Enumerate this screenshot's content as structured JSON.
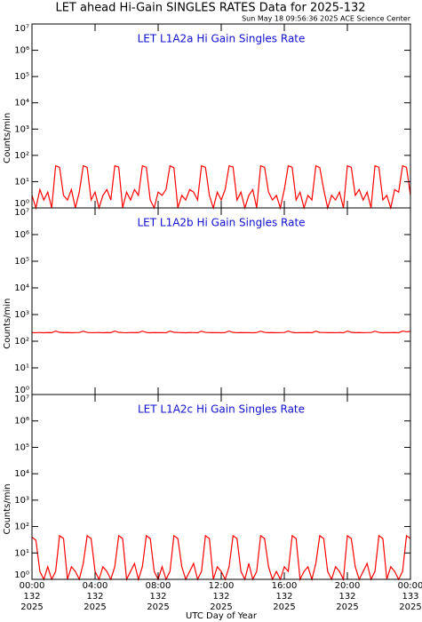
{
  "header": {
    "title": "LET ahead Hi-Gain SINGLES RATES Data for 2025-132",
    "timestamp": "Sun May 18 09:56:36 2025 ACE Science Center"
  },
  "chart_data": [
    {
      "type": "line",
      "subtitle": "LET L1A2a Hi Gain Singles Rate",
      "ylabel": "Counts/min",
      "yscale": "log",
      "color": "#ff0000",
      "xlim": [
        0,
        24
      ],
      "xticks": [
        0,
        4,
        8,
        12,
        16,
        20,
        24
      ],
      "ylim": [
        1,
        10000000
      ],
      "yticks": [
        {
          "value": 1,
          "label": "10⁰"
        },
        {
          "value": 10,
          "label": "10¹"
        },
        {
          "value": 100,
          "label": "10²"
        },
        {
          "value": 1000,
          "label": "10³"
        },
        {
          "value": 10000,
          "label": "10⁴"
        },
        {
          "value": 100000,
          "label": "10⁵"
        },
        {
          "value": 1000000,
          "label": "10⁶"
        },
        {
          "value": 10000000,
          "label": "10⁷"
        }
      ],
      "x": [
        0,
        0.25,
        0.5,
        0.75,
        1,
        1.25,
        1.5,
        1.75,
        2,
        2.25,
        2.5,
        2.75,
        3,
        3.25,
        3.5,
        3.75,
        4,
        4.25,
        4.5,
        4.75,
        5,
        5.25,
        5.5,
        5.75,
        6,
        6.25,
        6.5,
        6.75,
        7,
        7.25,
        7.5,
        7.75,
        8,
        8.25,
        8.5,
        8.75,
        9,
        9.25,
        9.5,
        9.75,
        10,
        10.25,
        10.5,
        10.75,
        11,
        11.25,
        11.5,
        11.75,
        12,
        12.25,
        12.5,
        12.75,
        13,
        13.25,
        13.5,
        13.75,
        14,
        14.25,
        14.5,
        14.75,
        15,
        15.25,
        15.5,
        15.75,
        16,
        16.25,
        16.5,
        16.75,
        17,
        17.25,
        17.5,
        17.75,
        18,
        18.25,
        18.5,
        18.75,
        19,
        19.25,
        19.5,
        19.75,
        20,
        20.25,
        20.5,
        20.75,
        21,
        21.25,
        21.5,
        21.75,
        22,
        22.25,
        22.5,
        22.75,
        23,
        23.25,
        23.5,
        23.75,
        24
      ],
      "values": [
        3,
        1,
        5,
        2,
        4,
        1,
        40,
        35,
        3,
        2,
        5,
        1,
        4,
        40,
        35,
        2,
        4,
        1,
        3,
        5,
        2,
        40,
        36,
        1,
        4,
        2,
        5,
        3,
        40,
        35,
        2,
        1,
        4,
        3,
        5,
        40,
        34,
        1,
        3,
        2,
        5,
        4,
        2,
        40,
        35,
        3,
        1,
        4,
        2,
        5,
        40,
        36,
        2,
        4,
        1,
        3,
        5,
        1,
        40,
        35,
        4,
        2,
        3,
        1,
        5,
        40,
        35,
        2,
        4,
        1,
        3,
        2,
        40,
        34,
        5,
        1,
        3,
        2,
        4,
        1,
        40,
        35,
        3,
        5,
        2,
        4,
        1,
        40,
        35,
        2,
        3,
        1,
        5,
        4,
        40,
        35,
        3
      ]
    },
    {
      "type": "line",
      "subtitle": "LET L1A2b Hi Gain Singles Rate",
      "ylabel": "Counts/min",
      "yscale": "log",
      "color": "#ff0000",
      "xlim": [
        0,
        24
      ],
      "xticks": [
        0,
        4,
        8,
        12,
        16,
        20,
        24
      ],
      "ylim": [
        1,
        10000000
      ],
      "yticks": [
        {
          "value": 1,
          "label": "10⁰"
        },
        {
          "value": 10,
          "label": "10¹"
        },
        {
          "value": 100,
          "label": "10²"
        },
        {
          "value": 1000,
          "label": "10³"
        },
        {
          "value": 10000,
          "label": "10⁴"
        },
        {
          "value": 100000,
          "label": "10⁵"
        },
        {
          "value": 1000000,
          "label": "10⁶"
        },
        {
          "value": 10000000,
          "label": "10⁷"
        }
      ],
      "x": [
        0,
        0.25,
        0.5,
        0.75,
        1,
        1.25,
        1.5,
        1.75,
        2,
        2.25,
        2.5,
        2.75,
        3,
        3.25,
        3.5,
        3.75,
        4,
        4.25,
        4.5,
        4.75,
        5,
        5.25,
        5.5,
        5.75,
        6,
        6.25,
        6.5,
        6.75,
        7,
        7.25,
        7.5,
        7.75,
        8,
        8.25,
        8.5,
        8.75,
        9,
        9.25,
        9.5,
        9.75,
        10,
        10.25,
        10.5,
        10.75,
        11,
        11.25,
        11.5,
        11.75,
        12,
        12.25,
        12.5,
        12.75,
        13,
        13.25,
        13.5,
        13.75,
        14,
        14.25,
        14.5,
        14.75,
        15,
        15.25,
        15.5,
        15.75,
        16,
        16.25,
        16.5,
        16.75,
        17,
        17.25,
        17.5,
        17.75,
        18,
        18.25,
        18.5,
        18.75,
        19,
        19.25,
        19.5,
        19.75,
        20,
        20.25,
        20.5,
        20.75,
        21,
        21.25,
        21.5,
        21.75,
        22,
        22.25,
        22.5,
        22.75,
        23,
        23.25,
        23.5,
        23.75,
        24
      ],
      "values": [
        210,
        208,
        212,
        207,
        211,
        209,
        240,
        215,
        209,
        211,
        207,
        210,
        212,
        238,
        214,
        208,
        210,
        212,
        207,
        211,
        209,
        240,
        215,
        210,
        208,
        212,
        209,
        211,
        238,
        214,
        207,
        211,
        209,
        210,
        208,
        240,
        215,
        212,
        209,
        207,
        211,
        210,
        208,
        238,
        214,
        211,
        209,
        210,
        207,
        212,
        240,
        215,
        208,
        211,
        209,
        210,
        207,
        212,
        238,
        214,
        209,
        211,
        208,
        210,
        212,
        240,
        215,
        207,
        210,
        209,
        211,
        208,
        238,
        214,
        212,
        209,
        210,
        208,
        211,
        207,
        240,
        215,
        209,
        211,
        208,
        210,
        212,
        238,
        214,
        207,
        210,
        209,
        211,
        208,
        240,
        225,
        235
      ]
    },
    {
      "type": "line",
      "subtitle": "LET L1A2c Hi Gain Singles Rate",
      "ylabel": "Counts/min",
      "xlabel": "UTC Day of Year",
      "yscale": "log",
      "color": "#ff0000",
      "xlim": [
        0,
        24
      ],
      "xticks": [
        {
          "value": 0,
          "label": "00:00"
        },
        {
          "value": 4,
          "label": "04:00"
        },
        {
          "value": 8,
          "label": "08:00"
        },
        {
          "value": 12,
          "label": "12:00"
        },
        {
          "value": 16,
          "label": "16:00"
        },
        {
          "value": 20,
          "label": "20:00"
        },
        {
          "value": 24,
          "label": "00:00"
        }
      ],
      "xtick_days": [
        "132",
        "132",
        "132",
        "132",
        "132",
        "132",
        "133"
      ],
      "xtick_years": [
        "2025",
        "2025",
        "2025",
        "2025",
        "2025",
        "2025",
        "2025"
      ],
      "ylim": [
        1,
        10000000
      ],
      "yticks": [
        {
          "value": 1,
          "label": "10⁰"
        },
        {
          "value": 10,
          "label": "10¹"
        },
        {
          "value": 100,
          "label": "10²"
        },
        {
          "value": 1000,
          "label": "10³"
        },
        {
          "value": 10000,
          "label": "10⁴"
        },
        {
          "value": 100000,
          "label": "10⁵"
        },
        {
          "value": 1000000,
          "label": "10⁶"
        },
        {
          "value": 10000000,
          "label": "10⁷"
        }
      ],
      "x": [
        0,
        0.25,
        0.5,
        0.75,
        1,
        1.25,
        1.5,
        1.75,
        2,
        2.25,
        2.5,
        2.75,
        3,
        3.25,
        3.5,
        3.75,
        4,
        4.25,
        4.5,
        4.75,
        5,
        5.25,
        5.5,
        5.75,
        6,
        6.25,
        6.5,
        6.75,
        7,
        7.25,
        7.5,
        7.75,
        8,
        8.25,
        8.5,
        8.75,
        9,
        9.25,
        9.5,
        9.75,
        10,
        10.25,
        10.5,
        10.75,
        11,
        11.25,
        11.5,
        11.75,
        12,
        12.25,
        12.5,
        12.75,
        13,
        13.25,
        13.5,
        13.75,
        14,
        14.25,
        14.5,
        14.75,
        15,
        15.25,
        15.5,
        15.75,
        16,
        16.25,
        16.5,
        16.75,
        17,
        17.25,
        17.5,
        17.75,
        18,
        18.25,
        18.5,
        18.75,
        19,
        19.25,
        19.5,
        19.75,
        20,
        20.25,
        20.5,
        20.75,
        21,
        21.25,
        21.5,
        21.75,
        22,
        22.25,
        22.5,
        22.75,
        23,
        23.25,
        23.5,
        23.75,
        24
      ],
      "values": [
        40,
        30,
        2,
        1,
        3,
        1,
        2,
        45,
        35,
        1,
        3,
        2,
        1,
        4,
        45,
        35,
        2,
        1,
        3,
        2,
        1,
        3,
        45,
        35,
        1,
        2,
        4,
        1,
        3,
        45,
        35,
        2,
        1,
        3,
        1,
        2,
        45,
        35,
        3,
        1,
        2,
        4,
        1,
        2,
        45,
        35,
        1,
        3,
        2,
        1,
        3,
        45,
        35,
        2,
        1,
        4,
        1,
        2,
        45,
        35,
        3,
        1,
        2,
        1,
        3,
        2,
        45,
        35,
        1,
        2,
        3,
        1,
        4,
        45,
        35,
        2,
        1,
        3,
        2,
        1,
        45,
        35,
        3,
        1,
        2,
        4,
        1,
        2,
        45,
        35,
        1,
        3,
        2,
        1,
        2,
        45,
        35
      ]
    }
  ]
}
